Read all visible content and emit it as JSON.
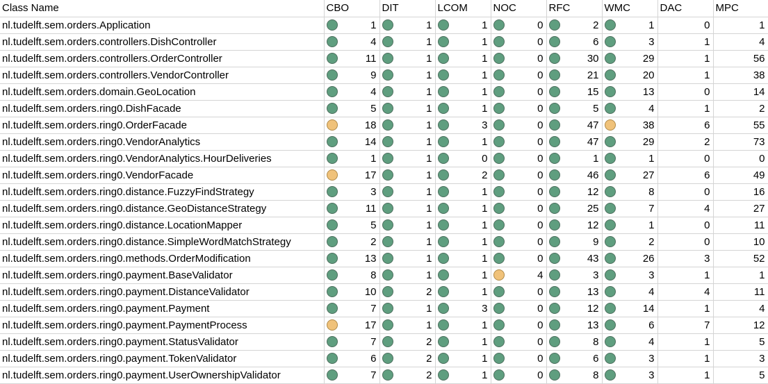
{
  "headers": [
    "Class Name",
    "CBO",
    "DIT",
    "LCOM",
    "NOC",
    "RFC",
    "WMC",
    "DAC",
    "MPC"
  ],
  "status_colors": {
    "green": "#5f9e7f",
    "yellow": "#f0c27a"
  },
  "rows": [
    {
      "name": "nl.tudelft.sem.orders.Application",
      "cbo": "1",
      "cbo_status": "green",
      "dit": "1",
      "dit_status": "green",
      "lcom": "1",
      "lcom_status": "green",
      "noc": "0",
      "noc_status": "green",
      "rfc": "2",
      "rfc_status": "green",
      "wmc": "1",
      "wmc_status": "green",
      "dac": "0",
      "mpc": "1"
    },
    {
      "name": "nl.tudelft.sem.orders.controllers.DishController",
      "cbo": "4",
      "cbo_status": "green",
      "dit": "1",
      "dit_status": "green",
      "lcom": "1",
      "lcom_status": "green",
      "noc": "0",
      "noc_status": "green",
      "rfc": "6",
      "rfc_status": "green",
      "wmc": "3",
      "wmc_status": "green",
      "dac": "1",
      "mpc": "4"
    },
    {
      "name": "nl.tudelft.sem.orders.controllers.OrderController",
      "cbo": "11",
      "cbo_status": "green",
      "dit": "1",
      "dit_status": "green",
      "lcom": "1",
      "lcom_status": "green",
      "noc": "0",
      "noc_status": "green",
      "rfc": "30",
      "rfc_status": "green",
      "wmc": "29",
      "wmc_status": "green",
      "dac": "1",
      "mpc": "56"
    },
    {
      "name": "nl.tudelft.sem.orders.controllers.VendorController",
      "cbo": "9",
      "cbo_status": "green",
      "dit": "1",
      "dit_status": "green",
      "lcom": "1",
      "lcom_status": "green",
      "noc": "0",
      "noc_status": "green",
      "rfc": "21",
      "rfc_status": "green",
      "wmc": "20",
      "wmc_status": "green",
      "dac": "1",
      "mpc": "38"
    },
    {
      "name": "nl.tudelft.sem.orders.domain.GeoLocation",
      "cbo": "4",
      "cbo_status": "green",
      "dit": "1",
      "dit_status": "green",
      "lcom": "1",
      "lcom_status": "green",
      "noc": "0",
      "noc_status": "green",
      "rfc": "15",
      "rfc_status": "green",
      "wmc": "13",
      "wmc_status": "green",
      "dac": "0",
      "mpc": "14"
    },
    {
      "name": "nl.tudelft.sem.orders.ring0.DishFacade",
      "cbo": "5",
      "cbo_status": "green",
      "dit": "1",
      "dit_status": "green",
      "lcom": "1",
      "lcom_status": "green",
      "noc": "0",
      "noc_status": "green",
      "rfc": "5",
      "rfc_status": "green",
      "wmc": "4",
      "wmc_status": "green",
      "dac": "1",
      "mpc": "2"
    },
    {
      "name": "nl.tudelft.sem.orders.ring0.OrderFacade",
      "cbo": "18",
      "cbo_status": "yellow",
      "dit": "1",
      "dit_status": "green",
      "lcom": "3",
      "lcom_status": "green",
      "noc": "0",
      "noc_status": "green",
      "rfc": "47",
      "rfc_status": "green",
      "wmc": "38",
      "wmc_status": "yellow",
      "dac": "6",
      "mpc": "55"
    },
    {
      "name": "nl.tudelft.sem.orders.ring0.VendorAnalytics",
      "cbo": "14",
      "cbo_status": "green",
      "dit": "1",
      "dit_status": "green",
      "lcom": "1",
      "lcom_status": "green",
      "noc": "0",
      "noc_status": "green",
      "rfc": "47",
      "rfc_status": "green",
      "wmc": "29",
      "wmc_status": "green",
      "dac": "2",
      "mpc": "73"
    },
    {
      "name": "nl.tudelft.sem.orders.ring0.VendorAnalytics.HourDeliveries",
      "cbo": "1",
      "cbo_status": "green",
      "dit": "1",
      "dit_status": "green",
      "lcom": "0",
      "lcom_status": "green",
      "noc": "0",
      "noc_status": "green",
      "rfc": "1",
      "rfc_status": "green",
      "wmc": "1",
      "wmc_status": "green",
      "dac": "0",
      "mpc": "0"
    },
    {
      "name": "nl.tudelft.sem.orders.ring0.VendorFacade",
      "cbo": "17",
      "cbo_status": "yellow",
      "dit": "1",
      "dit_status": "green",
      "lcom": "2",
      "lcom_status": "green",
      "noc": "0",
      "noc_status": "green",
      "rfc": "46",
      "rfc_status": "green",
      "wmc": "27",
      "wmc_status": "green",
      "dac": "6",
      "mpc": "49"
    },
    {
      "name": "nl.tudelft.sem.orders.ring0.distance.FuzzyFindStrategy",
      "cbo": "3",
      "cbo_status": "green",
      "dit": "1",
      "dit_status": "green",
      "lcom": "1",
      "lcom_status": "green",
      "noc": "0",
      "noc_status": "green",
      "rfc": "12",
      "rfc_status": "green",
      "wmc": "8",
      "wmc_status": "green",
      "dac": "0",
      "mpc": "16"
    },
    {
      "name": "nl.tudelft.sem.orders.ring0.distance.GeoDistanceStrategy",
      "cbo": "11",
      "cbo_status": "green",
      "dit": "1",
      "dit_status": "green",
      "lcom": "1",
      "lcom_status": "green",
      "noc": "0",
      "noc_status": "green",
      "rfc": "25",
      "rfc_status": "green",
      "wmc": "7",
      "wmc_status": "green",
      "dac": "4",
      "mpc": "27"
    },
    {
      "name": "nl.tudelft.sem.orders.ring0.distance.LocationMapper",
      "cbo": "5",
      "cbo_status": "green",
      "dit": "1",
      "dit_status": "green",
      "lcom": "1",
      "lcom_status": "green",
      "noc": "0",
      "noc_status": "green",
      "rfc": "12",
      "rfc_status": "green",
      "wmc": "1",
      "wmc_status": "green",
      "dac": "0",
      "mpc": "11"
    },
    {
      "name": "nl.tudelft.sem.orders.ring0.distance.SimpleWordMatchStrategy",
      "cbo": "2",
      "cbo_status": "green",
      "dit": "1",
      "dit_status": "green",
      "lcom": "1",
      "lcom_status": "green",
      "noc": "0",
      "noc_status": "green",
      "rfc": "9",
      "rfc_status": "green",
      "wmc": "2",
      "wmc_status": "green",
      "dac": "0",
      "mpc": "10"
    },
    {
      "name": "nl.tudelft.sem.orders.ring0.methods.OrderModification",
      "cbo": "13",
      "cbo_status": "green",
      "dit": "1",
      "dit_status": "green",
      "lcom": "1",
      "lcom_status": "green",
      "noc": "0",
      "noc_status": "green",
      "rfc": "43",
      "rfc_status": "green",
      "wmc": "26",
      "wmc_status": "green",
      "dac": "3",
      "mpc": "52"
    },
    {
      "name": "nl.tudelft.sem.orders.ring0.payment.BaseValidator",
      "cbo": "8",
      "cbo_status": "green",
      "dit": "1",
      "dit_status": "green",
      "lcom": "1",
      "lcom_status": "green",
      "noc": "4",
      "noc_status": "yellow",
      "rfc": "3",
      "rfc_status": "green",
      "wmc": "3",
      "wmc_status": "green",
      "dac": "1",
      "mpc": "1"
    },
    {
      "name": "nl.tudelft.sem.orders.ring0.payment.DistanceValidator",
      "cbo": "10",
      "cbo_status": "green",
      "dit": "2",
      "dit_status": "green",
      "lcom": "1",
      "lcom_status": "green",
      "noc": "0",
      "noc_status": "green",
      "rfc": "13",
      "rfc_status": "green",
      "wmc": "4",
      "wmc_status": "green",
      "dac": "4",
      "mpc": "11"
    },
    {
      "name": "nl.tudelft.sem.orders.ring0.payment.Payment",
      "cbo": "7",
      "cbo_status": "green",
      "dit": "1",
      "dit_status": "green",
      "lcom": "3",
      "lcom_status": "green",
      "noc": "0",
      "noc_status": "green",
      "rfc": "12",
      "rfc_status": "green",
      "wmc": "14",
      "wmc_status": "green",
      "dac": "1",
      "mpc": "4"
    },
    {
      "name": "nl.tudelft.sem.orders.ring0.payment.PaymentProcess",
      "cbo": "17",
      "cbo_status": "yellow",
      "dit": "1",
      "dit_status": "green",
      "lcom": "1",
      "lcom_status": "green",
      "noc": "0",
      "noc_status": "green",
      "rfc": "13",
      "rfc_status": "green",
      "wmc": "6",
      "wmc_status": "green",
      "dac": "7",
      "mpc": "12"
    },
    {
      "name": "nl.tudelft.sem.orders.ring0.payment.StatusValidator",
      "cbo": "7",
      "cbo_status": "green",
      "dit": "2",
      "dit_status": "green",
      "lcom": "1",
      "lcom_status": "green",
      "noc": "0",
      "noc_status": "green",
      "rfc": "8",
      "rfc_status": "green",
      "wmc": "4",
      "wmc_status": "green",
      "dac": "1",
      "mpc": "5"
    },
    {
      "name": "nl.tudelft.sem.orders.ring0.payment.TokenValidator",
      "cbo": "6",
      "cbo_status": "green",
      "dit": "2",
      "dit_status": "green",
      "lcom": "1",
      "lcom_status": "green",
      "noc": "0",
      "noc_status": "green",
      "rfc": "6",
      "rfc_status": "green",
      "wmc": "3",
      "wmc_status": "green",
      "dac": "1",
      "mpc": "3"
    },
    {
      "name": "nl.tudelft.sem.orders.ring0.payment.UserOwnershipValidator",
      "cbo": "7",
      "cbo_status": "green",
      "dit": "2",
      "dit_status": "green",
      "lcom": "1",
      "lcom_status": "green",
      "noc": "0",
      "noc_status": "green",
      "rfc": "8",
      "rfc_status": "green",
      "wmc": "3",
      "wmc_status": "green",
      "dac": "1",
      "mpc": "5"
    }
  ]
}
